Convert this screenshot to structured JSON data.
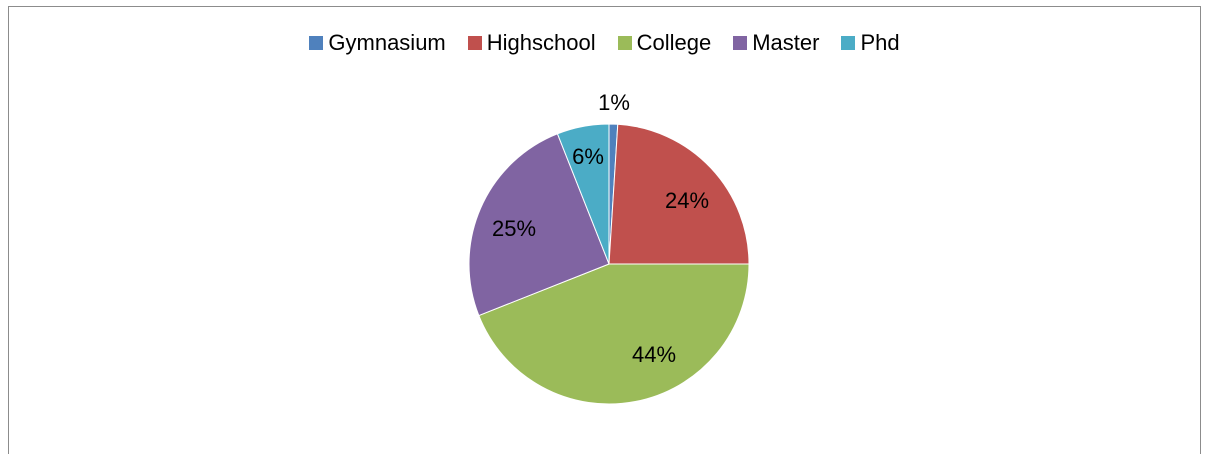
{
  "chart_data": {
    "type": "pie",
    "title": "",
    "legend_position": "top",
    "categories": [
      "Gymnasium",
      "Highschool",
      "College",
      "Master",
      "Phd"
    ],
    "values": [
      1,
      24,
      44,
      25,
      6
    ],
    "labels": [
      "1%",
      "24%",
      "44%",
      "25%",
      "6%"
    ],
    "colors": [
      "#4f81bd",
      "#c0504d",
      "#9bbb59",
      "#8064a2",
      "#4bacc6"
    ]
  }
}
